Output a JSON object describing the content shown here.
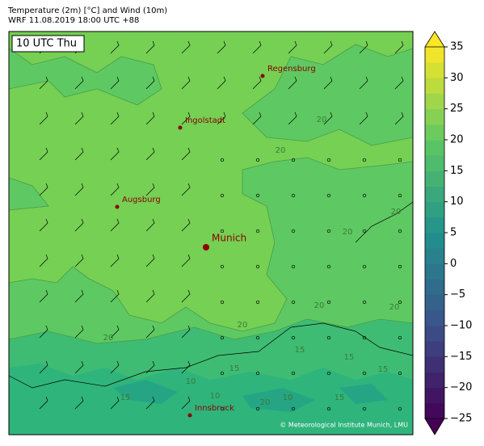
{
  "header": {
    "title": "Temperature (2m) [°C] and Wind (10m)",
    "subtitle": "WRF 11.08.2019 18:00 UTC +88"
  },
  "time_label": "10 UTC Thu",
  "cities": [
    {
      "name": "Regensburg"
    },
    {
      "name": "Ingolstadt"
    },
    {
      "name": "Augsburg"
    },
    {
      "name": "Munich"
    },
    {
      "name": "Innsbruck"
    }
  ],
  "contour_labels": [
    "20",
    "20",
    "20",
    "20",
    "20",
    "20",
    "20",
    "20",
    "15",
    "15",
    "15",
    "15",
    "15",
    "10",
    "10",
    "10",
    "20",
    "15"
  ],
  "colorbar": {
    "lim": [
      -25,
      35
    ],
    "step": 2.5,
    "ticks": [
      35,
      30,
      25,
      20,
      15,
      10,
      5,
      0,
      {
        "value": -5,
        "label": "−5"
      },
      {
        "value": -10,
        "label": "−10"
      },
      {
        "value": -15,
        "label": "−15"
      },
      {
        "value": -20,
        "label": "−20"
      },
      {
        "value": -25,
        "label": "−25"
      }
    ]
  },
  "credit": "© Meteorological Institute Munich, LMU"
}
